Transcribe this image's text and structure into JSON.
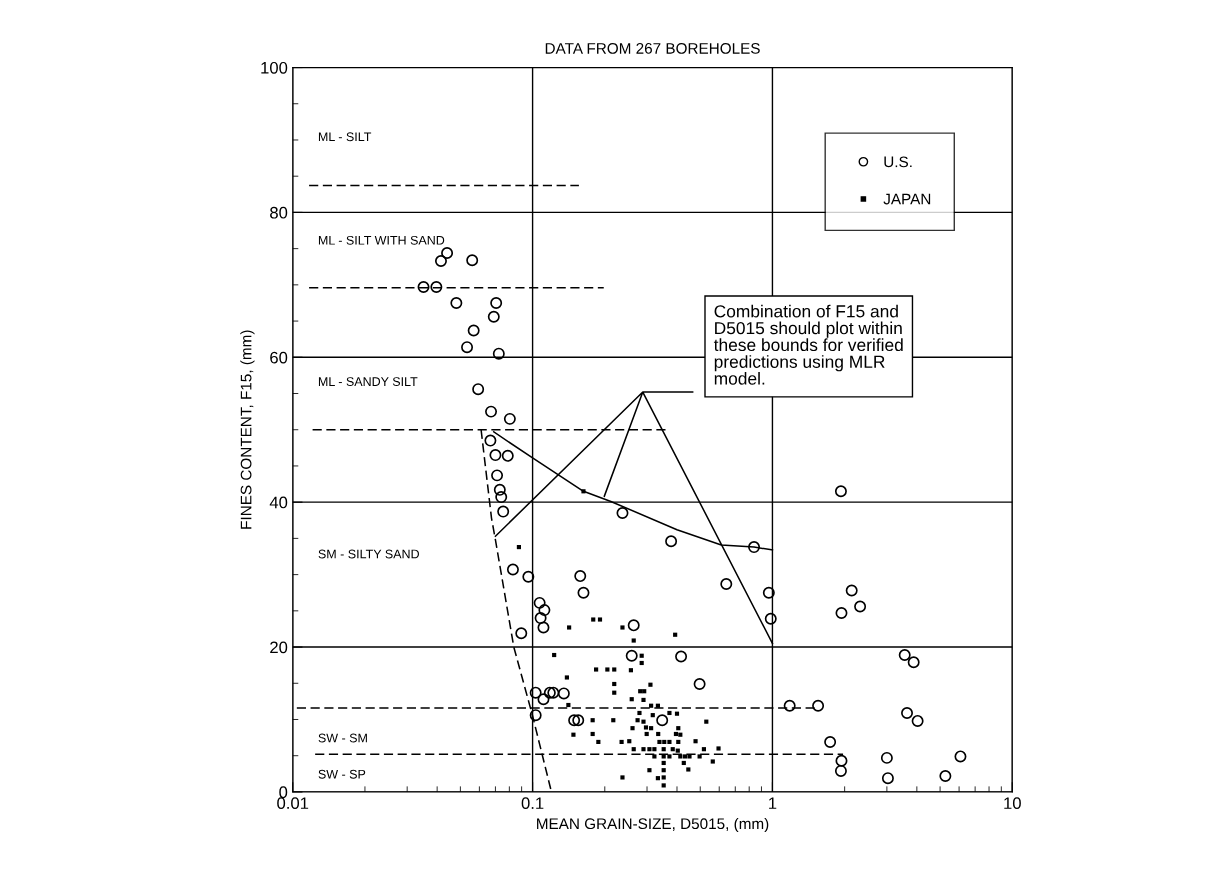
{
  "chart_data": {
    "type": "scatter",
    "title": "DATA FROM 267 BOREHOLES",
    "xlabel": "MEAN GRAIN-SIZE, D5015, (mm)",
    "ylabel": "FINES CONTENT, F15, (mm)",
    "log": "x",
    "xlim": [
      0.01,
      10
    ],
    "xticks": [
      0.01,
      0.1,
      1,
      10
    ],
    "ylim": [
      0,
      100
    ],
    "yticks": [
      0,
      20,
      40,
      60,
      80,
      100
    ],
    "grid": true,
    "legend": "top right",
    "series": [
      {
        "name": "U.S.",
        "marker": "circle",
        "color": "#000000",
        "x": [
          0.044,
          0.0415,
          0.056,
          0.0351,
          0.0397,
          0.0481,
          0.0705,
          0.0689,
          0.0568,
          0.0533,
          0.0723,
          0.0593,
          0.0671,
          0.0804,
          0.0667,
          0.07,
          0.0788,
          0.0711,
          0.073,
          0.074,
          0.0754,
          0.237,
          0.378,
          0.838,
          0.158,
          0.163,
          0.642,
          0.966,
          0.0828,
          0.096,
          0.107,
          0.112,
          0.108,
          0.111,
          0.0897,
          0.264,
          0.984,
          0.259,
          0.416,
          0.497,
          0.103,
          0.111,
          0.118,
          0.122,
          0.135,
          0.103,
          0.149,
          0.155,
          0.347,
          1.93,
          2.14,
          2.32,
          1.94,
          3.56,
          3.88,
          3.64,
          4.03,
          1.18,
          1.55,
          1.74,
          1.94,
          1.93,
          3.0,
          3.03,
          5.26,
          6.08
        ],
        "values": [
          74.4,
          73.3,
          73.4,
          69.7,
          69.7,
          67.5,
          67.5,
          65.6,
          63.7,
          61.4,
          60.5,
          55.6,
          52.5,
          51.5,
          48.5,
          46.5,
          46.4,
          43.7,
          41.7,
          40.7,
          38.7,
          38.5,
          34.6,
          33.8,
          29.8,
          27.5,
          28.7,
          27.5,
          30.7,
          29.7,
          26.1,
          25.1,
          24.0,
          22.7,
          21.9,
          23.0,
          23.9,
          18.8,
          18.7,
          14.9,
          13.7,
          12.8,
          13.7,
          13.7,
          13.6,
          10.6,
          9.9,
          9.9,
          9.9,
          41.5,
          27.8,
          25.6,
          24.7,
          18.9,
          17.9,
          10.9,
          9.8,
          11.9,
          11.9,
          6.9,
          4.3,
          2.9,
          4.7,
          1.9,
          2.2,
          4.9
        ]
      },
      {
        "name": "JAPAN",
        "marker": "square",
        "color": "#000000",
        "x": [
          0.0877,
          0.163,
          0.142,
          0.179,
          0.191,
          0.237,
          0.264,
          0.393,
          0.123,
          0.285,
          0.285,
          0.184,
          0.205,
          0.219,
          0.257,
          0.139,
          0.219,
          0.31,
          0.219,
          0.281,
          0.292,
          0.259,
          0.29,
          0.141,
          0.312,
          0.333,
          0.279,
          0.317,
          0.372,
          0.4,
          0.178,
          0.217,
          0.274,
          0.29,
          0.53,
          0.261,
          0.297,
          0.312,
          0.405,
          0.148,
          0.178,
          0.299,
          0.334,
          0.396,
          0.413,
          0.188,
          0.235,
          0.253,
          0.338,
          0.354,
          0.372,
          0.405,
          0.478,
          0.264,
          0.29,
          0.307,
          0.322,
          0.352,
          0.384,
          0.403,
          0.518,
          0.596,
          0.322,
          0.352,
          0.372,
          0.413,
          0.432,
          0.451,
          0.497,
          0.427,
          0.564,
          0.352,
          0.307,
          0.352,
          0.446,
          0.237,
          0.333,
          0.352,
          0.352
        ],
        "values": [
          33.8,
          41.5,
          22.7,
          23.8,
          23.8,
          22.7,
          20.9,
          21.7,
          18.9,
          18.8,
          17.8,
          16.9,
          16.9,
          16.9,
          16.8,
          15.8,
          14.9,
          14.8,
          13.7,
          13.9,
          13.9,
          12.8,
          12.7,
          12.0,
          11.9,
          11.9,
          10.9,
          10.6,
          10.9,
          10.8,
          9.9,
          9.9,
          9.9,
          9.7,
          9.7,
          8.8,
          8.9,
          8.8,
          8.8,
          7.9,
          8.0,
          8.0,
          8.0,
          8.0,
          7.9,
          6.9,
          6.9,
          7.0,
          6.9,
          6.9,
          6.9,
          6.9,
          7.0,
          5.9,
          5.9,
          5.9,
          5.9,
          5.9,
          5.9,
          5.7,
          5.9,
          6.0,
          4.9,
          4.9,
          4.9,
          4.9,
          4.9,
          4.9,
          4.9,
          4.0,
          4.2,
          4.0,
          3.0,
          3.0,
          3.1,
          2.0,
          1.9,
          2.0,
          0.9
        ]
      },
      {
        "type": "line",
        "line_style": "dashed",
        "color": "#000000",
        "x": [
          0.0117,
          0.156
        ],
        "values": [
          83.7,
          83.7
        ]
      },
      {
        "type": "line",
        "line_style": "dashed",
        "color": "#000000",
        "x": [
          0.0117,
          0.198
        ],
        "values": [
          69.6,
          69.6
        ]
      },
      {
        "type": "line",
        "line_style": "dashed",
        "color": "#000000",
        "x": [
          0.0121,
          0.36
        ],
        "values": [
          50.0,
          50.0
        ]
      },
      {
        "type": "line",
        "line_style": "dashed",
        "color": "#000000",
        "x": [
          0.0104,
          1.55
        ],
        "values": [
          11.6,
          11.6
        ]
      },
      {
        "type": "line",
        "line_style": "dashed",
        "color": "#000000",
        "x": [
          0.0124,
          1.97
        ],
        "values": [
          5.2,
          5.2
        ]
      },
      {
        "type": "line",
        "line_style": "dashed",
        "color": "#000000",
        "x": [
          0.061,
          0.0674,
          0.07,
          0.0835,
          0.1,
          0.119
        ],
        "values": [
          50.0,
          37.8,
          34.8,
          20.0,
          10.5,
          0.4
        ]
      },
      {
        "type": "line",
        "line_style": "solid",
        "color": "#000000",
        "x": [
          0.07,
          0.288,
          0.199,
          0.288,
          0.466,
          0.288,
          1.0
        ],
        "values": [
          35.3,
          55.2,
          40.8,
          55.2,
          55.2,
          55.2,
          20.5
        ]
      },
      {
        "type": "line",
        "line_style": "solid",
        "color": "#000000",
        "x": [
          0.0689,
          0.1,
          0.163,
          0.212,
          0.4,
          0.612,
          0.838,
          1.0
        ],
        "values": [
          49.7,
          46.1,
          41.5,
          40.1,
          36.2,
          34.1,
          33.8,
          33.4
        ]
      }
    ],
    "annotations": [
      "ML - SILT",
      "ML - SILT WITH SAND",
      "ML - SANDY SILT",
      "SM - SILTY SAND",
      "SW - SM",
      "SW - SP",
      "Combination of F15 and\nD5015 should plot within\nthese bounds for verified\npredictions using MLR\nmodel."
    ]
  }
}
